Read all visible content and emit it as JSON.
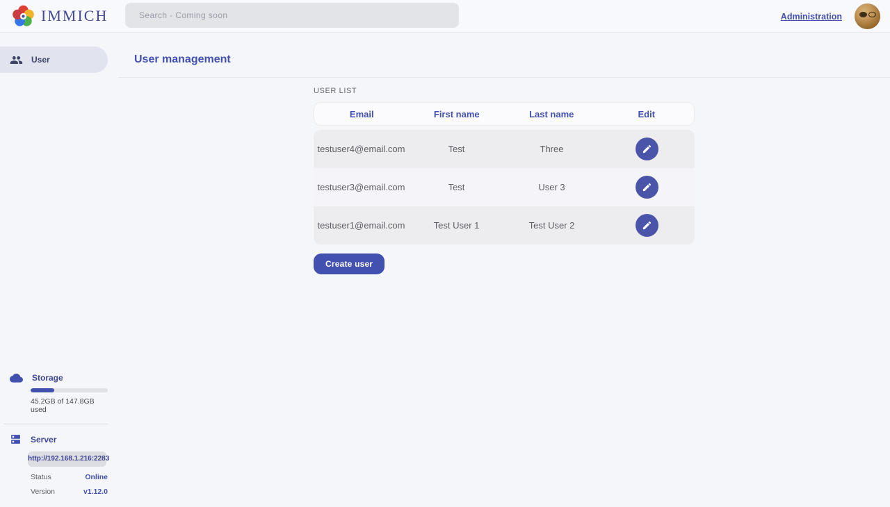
{
  "header": {
    "logo_text": "IMMICH",
    "search": {
      "placeholder": "Search - Coming soon"
    },
    "admin_link": "Administration"
  },
  "sidebar": {
    "items": [
      {
        "label": "User"
      }
    ],
    "storage": {
      "title": "Storage",
      "usage": "45.2GB of 147.8GB used",
      "percent": 31
    },
    "server": {
      "title": "Server",
      "url": "http://192.168.1.216:2283",
      "status_label": "Status",
      "status_value": "Online",
      "version_label": "Version",
      "version_value": "v1.12.0"
    }
  },
  "main": {
    "title": "User management",
    "section_label": "USER LIST",
    "table": {
      "headers": [
        "Email",
        "First name",
        "Last name",
        "Edit"
      ],
      "rows": [
        {
          "email": "testuser4@email.com",
          "first_name": "Test",
          "last_name": "Three"
        },
        {
          "email": "testuser3@email.com",
          "first_name": "Test",
          "last_name": "User 3"
        },
        {
          "email": "testuser1@email.com",
          "first_name": "Test User 1",
          "last_name": "Test User 2"
        }
      ]
    },
    "create_button": "Create user"
  },
  "icons": {
    "logo": "immich-flower-icon",
    "sidebar_user": "group-icon",
    "storage": "cloud-icon",
    "server": "dns-icon",
    "edit": "pencil-icon"
  },
  "colors": {
    "primary": "#4250af",
    "accent_button": "#4a54a8",
    "background": "#f5f6fa"
  }
}
